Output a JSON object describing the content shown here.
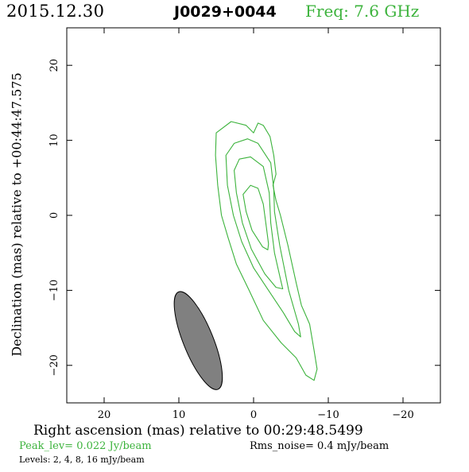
{
  "header": {
    "date": "2015.12.30",
    "source": "J0029+0044",
    "frequency": "Freq: 7.6 GHz"
  },
  "footer": {
    "peak": "Peak_lev=  0.022 Jy/beam",
    "rms": "Rms_noise=  0.4 mJy/beam",
    "levels": "Levels:   2,    4,    8,   16  mJy/beam"
  },
  "colors": {
    "contour": "#3cb33c",
    "beam_fill": "#808080",
    "frame": "#000000"
  },
  "chart_data": {
    "type": "contour",
    "xlabel": "Right ascension (mas) relative to 00:29:48.5499",
    "ylabel": "Declination (mas) relative to +00:44:47.575",
    "xlim": [
      25,
      -25
    ],
    "ylim": [
      -25,
      25
    ],
    "xticks": [
      20,
      10,
      0,
      -10,
      -20
    ],
    "yticks": [
      20,
      10,
      0,
      -10,
      -20
    ],
    "xticklabels": [
      "20",
      "10",
      "0",
      "−10",
      "−20"
    ],
    "yticklabels": [
      "20",
      "10",
      "0",
      "−10",
      "−20"
    ],
    "units": "mJy/beam",
    "levels": [
      2,
      4,
      8,
      16
    ],
    "peak_Jy_per_beam": 0.022,
    "rms_mJy_per_beam": 0.4,
    "contours": [
      {
        "level": 2,
        "points": [
          [
            5.0,
            11.0
          ],
          [
            3.0,
            12.5
          ],
          [
            1.0,
            12.0
          ],
          [
            0.0,
            11.0
          ],
          [
            -0.6,
            12.3
          ],
          [
            -1.3,
            12.0
          ],
          [
            -2.2,
            10.5
          ],
          [
            -2.7,
            8.0
          ],
          [
            -3.0,
            5.5
          ],
          [
            -2.6,
            4.0
          ],
          [
            -3.0,
            2.0
          ],
          [
            -3.6,
            0.0
          ],
          [
            -4.6,
            -4.0
          ],
          [
            -5.7,
            -9.0
          ],
          [
            -6.4,
            -12.0
          ],
          [
            -7.5,
            -14.5
          ],
          [
            -8.1,
            -18.0
          ],
          [
            -8.5,
            -20.5
          ],
          [
            -8.1,
            -22.0
          ],
          [
            -7.0,
            -21.3
          ],
          [
            -5.7,
            -19.0
          ],
          [
            -3.7,
            -17.0
          ],
          [
            -1.3,
            -14.0
          ],
          [
            0.6,
            -10.0
          ],
          [
            2.3,
            -6.5
          ],
          [
            3.4,
            -3.0
          ],
          [
            4.3,
            0.0
          ],
          [
            4.8,
            4.0
          ],
          [
            5.1,
            8.0
          ],
          [
            5.0,
            11.0
          ]
        ]
      },
      {
        "level": 4,
        "points": [
          [
            3.7,
            8.0
          ],
          [
            2.6,
            9.6
          ],
          [
            0.8,
            10.2
          ],
          [
            -0.6,
            9.6
          ],
          [
            -2.3,
            7.0
          ],
          [
            -2.7,
            3.5
          ],
          [
            -2.8,
            0.5
          ],
          [
            -3.5,
            -4.0
          ],
          [
            -4.7,
            -10.0
          ],
          [
            -6.0,
            -14.5
          ],
          [
            -6.3,
            -16.2
          ],
          [
            -5.5,
            -15.5
          ],
          [
            -4.0,
            -13.0
          ],
          [
            -2.0,
            -10.0
          ],
          [
            0.0,
            -7.0
          ],
          [
            1.6,
            -3.5
          ],
          [
            2.7,
            0.0
          ],
          [
            3.5,
            4.0
          ],
          [
            3.7,
            8.0
          ]
        ]
      },
      {
        "level": 8,
        "points": [
          [
            2.6,
            6.0
          ],
          [
            1.9,
            7.5
          ],
          [
            0.4,
            7.8
          ],
          [
            -1.3,
            6.5
          ],
          [
            -2.1,
            3.0
          ],
          [
            -2.3,
            -1.0
          ],
          [
            -2.8,
            -5.0
          ],
          [
            -3.6,
            -8.5
          ],
          [
            -3.9,
            -9.8
          ],
          [
            -3.0,
            -9.6
          ],
          [
            -1.5,
            -7.8
          ],
          [
            0.3,
            -4.5
          ],
          [
            1.5,
            -1.0
          ],
          [
            2.3,
            3.0
          ],
          [
            2.6,
            6.0
          ]
        ]
      },
      {
        "level": 16,
        "points": [
          [
            1.4,
            2.8
          ],
          [
            0.4,
            4.0
          ],
          [
            -0.6,
            3.6
          ],
          [
            -1.3,
            1.5
          ],
          [
            -1.7,
            -1.5
          ],
          [
            -2.0,
            -3.8
          ],
          [
            -1.9,
            -4.6
          ],
          [
            -1.2,
            -4.2
          ],
          [
            0.2,
            -2.0
          ],
          [
            1.0,
            0.5
          ],
          [
            1.4,
            2.8
          ]
        ]
      }
    ],
    "beam": {
      "center": [
        7.4,
        -16.7
      ],
      "major_mas": 14.0,
      "minor_mas": 4.0,
      "pa_deg": -22
    }
  }
}
